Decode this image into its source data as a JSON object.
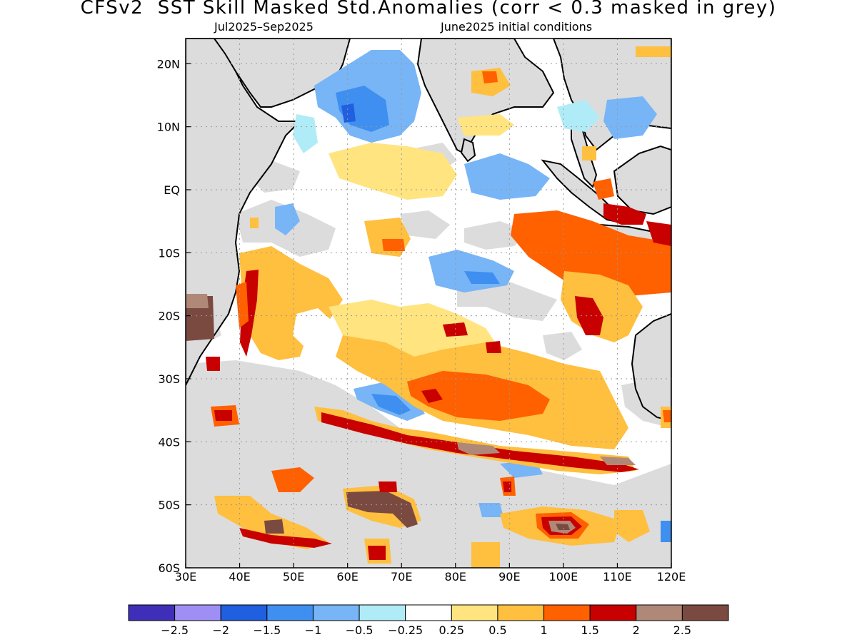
{
  "title": "CFSv2  SST Skill Masked Std.Anomalies (corr < 0.3 masked in grey)",
  "subtitle_left": "Jul2025–Sep2025",
  "subtitle_right": "June2025 initial conditions",
  "map": {
    "lon_range": [
      30,
      120
    ],
    "lat_range": [
      -60,
      24
    ],
    "lon_ticks": [
      30,
      40,
      50,
      60,
      70,
      80,
      90,
      100,
      110,
      120
    ],
    "lon_labels": [
      "30E",
      "40E",
      "50E",
      "60E",
      "70E",
      "80E",
      "90E",
      "100E",
      "110E",
      "120E"
    ],
    "lat_ticks": [
      20,
      10,
      0,
      -10,
      -20,
      -30,
      -40,
      -50,
      -60
    ],
    "lat_labels": [
      "20N",
      "10N",
      "EQ",
      "10S",
      "20S",
      "30S",
      "40S",
      "50S",
      "60S"
    ],
    "mask_color": "#dcdcdc",
    "land_color": "#dcdcdc"
  },
  "colorbar": {
    "colors": [
      "#3f2fb8",
      "#9f8ff5",
      "#1f5fe0",
      "#3f8ff0",
      "#77b5f7",
      "#b0ecf7",
      "#ffffff",
      "#ffe480",
      "#ffbf3f",
      "#ff6000",
      "#c80000",
      "#b08878",
      "#7a4a40"
    ],
    "labels": [
      "−2.5",
      "−2",
      "−1.5",
      "−1",
      "−0.5",
      "−0.25",
      "0.25",
      "0.5",
      "1",
      "1.5",
      "2",
      "2.5"
    ]
  }
}
